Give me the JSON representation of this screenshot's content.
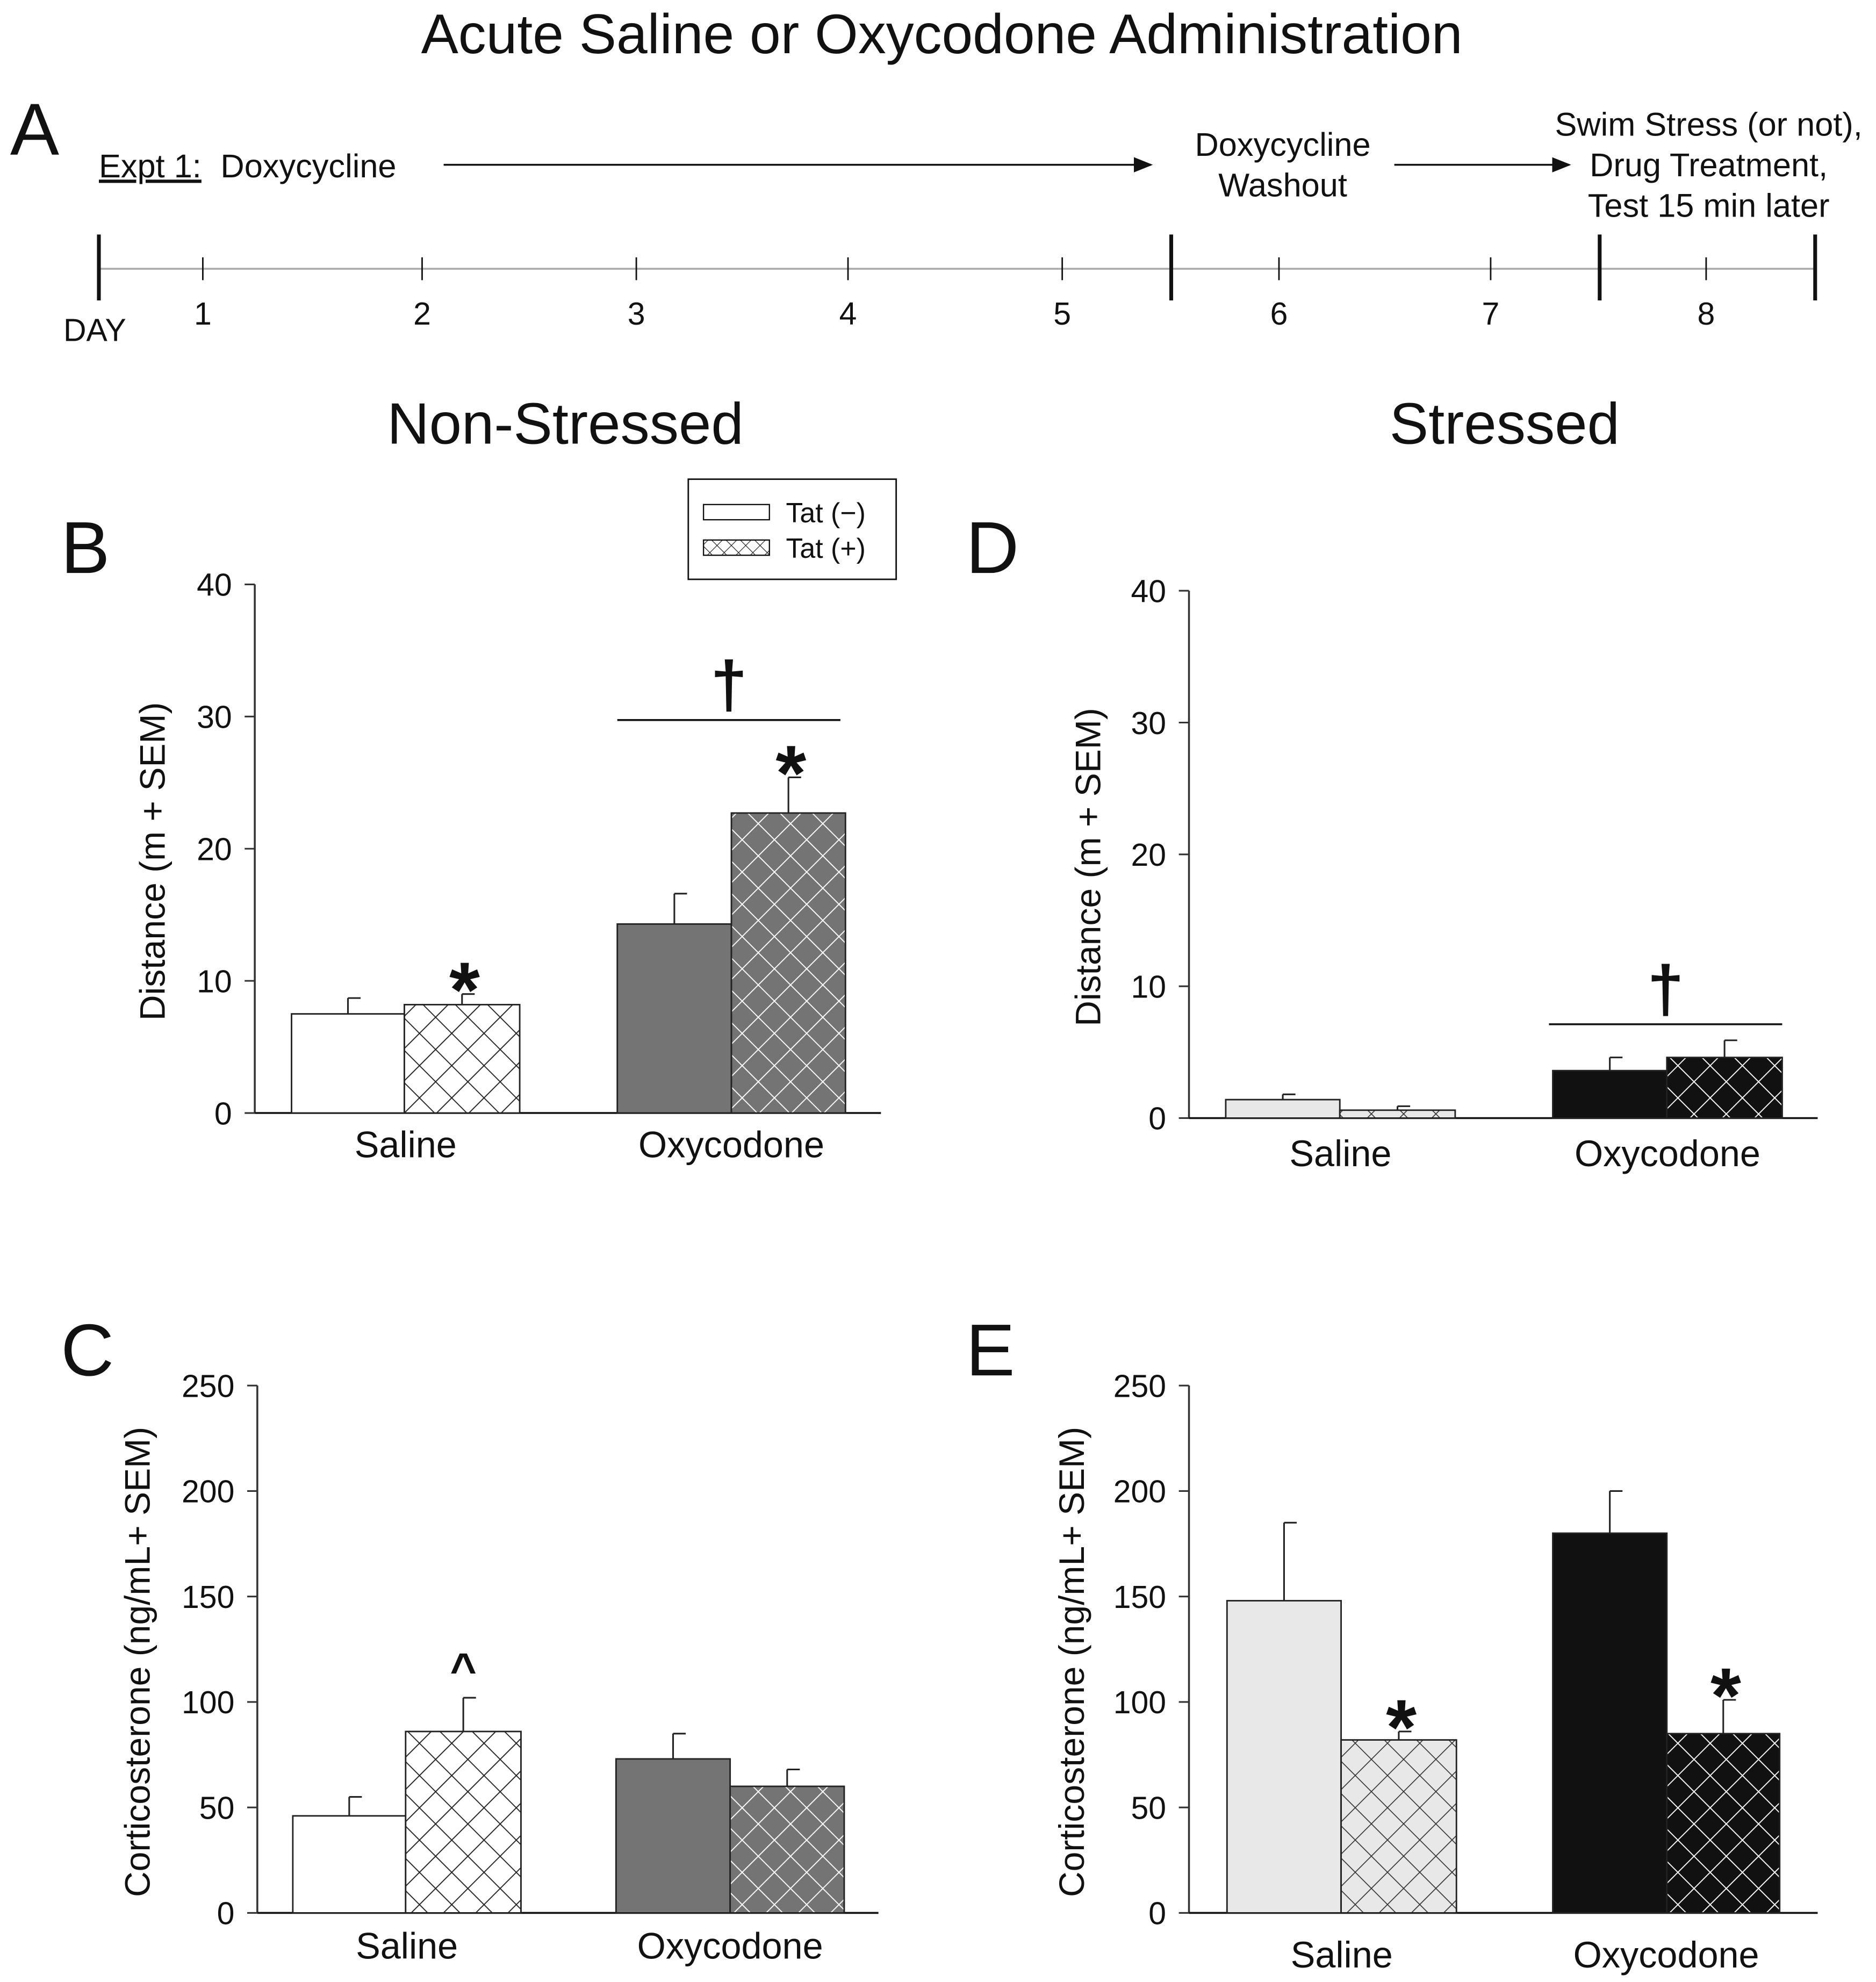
{
  "title": "Acute Saline or Oxycodone Administration",
  "timeline": {
    "panel_label": "A",
    "expt_label": "Expt 1:",
    "phase1": "Doxycycline",
    "phase2_lines": [
      "Doxycycline",
      "Washout"
    ],
    "phase3_lines": [
      "Swim Stress (or not),",
      "Drug Treatment,",
      "Test 15 min later"
    ],
    "day_label": "DAY",
    "days": [
      "1",
      "2",
      "3",
      "4",
      "5",
      "6",
      "7",
      "8"
    ]
  },
  "column_titles": {
    "left": "Non-Stressed",
    "right": "Stressed"
  },
  "legend": {
    "items": [
      "Tat (−)",
      "Tat (+)"
    ]
  },
  "colors": {
    "white": "#ffffff",
    "dark_gray": "#747474",
    "light_gray": "#e8e8e8",
    "black": "#111111"
  },
  "chart_data": [
    {
      "id": "B",
      "type": "bar",
      "panel_label": "B",
      "ylabel": "Distance (m + SEM)",
      "ylim": [
        0,
        40
      ],
      "yticks": [
        "0",
        "10",
        "20",
        "30",
        "40"
      ],
      "categories": [
        "Saline",
        "Oxycodone"
      ],
      "series": [
        {
          "name": "Tat (−)",
          "values": [
            7.5,
            14.3
          ],
          "sem": [
            1.2,
            2.3
          ]
        },
        {
          "name": "Tat (+)",
          "values": [
            8.2,
            22.7
          ],
          "sem": [
            0.8,
            2.7
          ]
        }
      ],
      "annotations": [
        {
          "symbol": "*",
          "category": 0,
          "series": 1
        },
        {
          "symbol": "*",
          "category": 1,
          "series": 1
        },
        {
          "symbol": "†",
          "category": 1,
          "series": "both"
        }
      ]
    },
    {
      "id": "C",
      "type": "bar",
      "panel_label": "C",
      "ylabel": "Corticosterone (ng/mL+ SEM)",
      "ylim": [
        0,
        250
      ],
      "yticks": [
        "0",
        "50",
        "100",
        "150",
        "200",
        "250"
      ],
      "categories": [
        "Saline",
        "Oxycodone"
      ],
      "series": [
        {
          "name": "Tat (−)",
          "values": [
            46,
            73
          ],
          "sem": [
            9,
            12
          ]
        },
        {
          "name": "Tat (+)",
          "values": [
            86,
            60
          ],
          "sem": [
            16,
            8
          ]
        }
      ],
      "annotations": [
        {
          "symbol": "^",
          "category": 0,
          "series": 1
        }
      ]
    },
    {
      "id": "D",
      "type": "bar",
      "panel_label": "D",
      "ylabel": "Distance (m + SEM)",
      "ylim": [
        0,
        40
      ],
      "yticks": [
        "0",
        "10",
        "20",
        "30",
        "40"
      ],
      "categories": [
        "Saline",
        "Oxycodone"
      ],
      "series": [
        {
          "name": "Tat (−)",
          "values": [
            1.4,
            3.6
          ],
          "sem": [
            0.4,
            1.0
          ]
        },
        {
          "name": "Tat (+)",
          "values": [
            0.6,
            4.6
          ],
          "sem": [
            0.3,
            1.3
          ]
        }
      ],
      "annotations": [
        {
          "symbol": "†",
          "category": 1,
          "series": "both"
        }
      ]
    },
    {
      "id": "E",
      "type": "bar",
      "panel_label": "E",
      "ylabel": "Corticosterone (ng/mL+ SEM)",
      "ylim": [
        0,
        250
      ],
      "yticks": [
        "0",
        "50",
        "100",
        "150",
        "200",
        "250"
      ],
      "categories": [
        "Saline",
        "Oxycodone"
      ],
      "series": [
        {
          "name": "Tat (−)",
          "values": [
            148,
            180
          ],
          "sem": [
            37,
            20
          ]
        },
        {
          "name": "Tat (+)",
          "values": [
            82,
            85
          ],
          "sem": [
            4,
            16
          ]
        }
      ],
      "annotations": [
        {
          "symbol": "*",
          "category": 0,
          "series": 1
        },
        {
          "symbol": "*",
          "category": 1,
          "series": 1
        }
      ]
    }
  ]
}
